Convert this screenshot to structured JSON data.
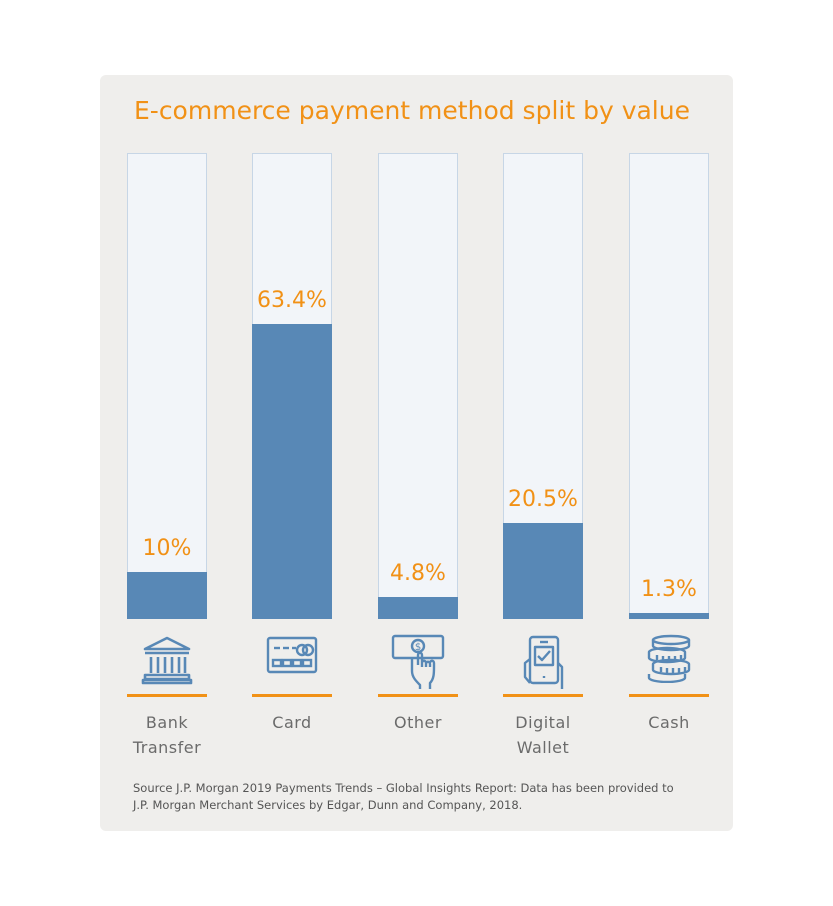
{
  "chart_data": {
    "type": "bar",
    "title": "E-commerce payment method split by value",
    "categories": [
      "Bank\nTransfer",
      "Card",
      "Other",
      "Digital\nWallet",
      "Cash"
    ],
    "values": [
      10,
      63.4,
      4.8,
      20.5,
      1.3
    ],
    "value_labels": [
      "10%",
      "63.4%",
      "4.8%",
      "20.5%",
      "1.3%"
    ],
    "icons": [
      "bank-icon",
      "credit-card-icon",
      "cash-payment-icon",
      "mobile-wallet-icon",
      "coins-icon"
    ],
    "ylim": [
      0,
      100
    ],
    "unit": "%",
    "xlabel": "",
    "ylabel": "",
    "grid": false,
    "legend": "none",
    "colors": {
      "bar": "#5888b6",
      "track": "#f2f5f9",
      "accent": "#f19116",
      "background": "#efeeec"
    }
  },
  "source": "Source J.P. Morgan 2019 Payments Trends – Global Insights Report: Data has been provided to J.P. Morgan Merchant Services by Edgar, Dunn and Company, 2018."
}
